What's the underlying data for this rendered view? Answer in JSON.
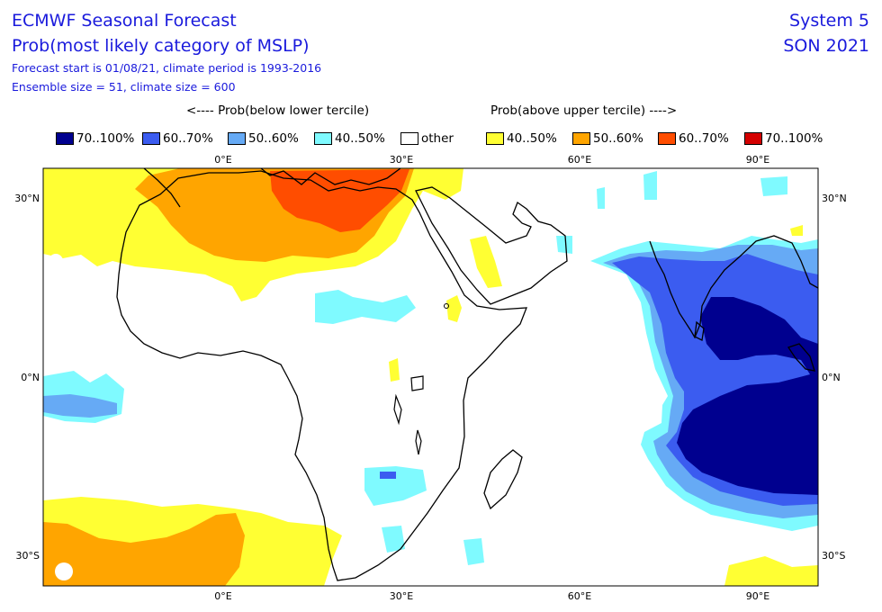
{
  "header": {
    "title": "ECMWF Seasonal Forecast",
    "subtitle": "Prob(most likely category of MSLP)",
    "forecast_info": "Forecast start is 01/08/21, climate period is 1993-2016",
    "ensemble_info": "Ensemble size = 51, climate size = 600",
    "system": "System 5",
    "season": "SON 2021"
  },
  "legend": {
    "below_header": "<---- Prob(below lower tercile)",
    "above_header": "Prob(above upper tercile) ---->",
    "items": [
      {
        "label": "70..100%",
        "color": "#00008f"
      },
      {
        "label": "60..70%",
        "color": "#3b5cf0"
      },
      {
        "label": "50..60%",
        "color": "#66aaf5"
      },
      {
        "label": "40..50%",
        "color": "#7ffaff"
      },
      {
        "label": "other",
        "color": "#ffffff"
      },
      {
        "label": "40..50%",
        "color": "#ffff33"
      },
      {
        "label": "50..60%",
        "color": "#ffa500"
      },
      {
        "label": "60..70%",
        "color": "#ff4d00"
      },
      {
        "label": "70..100%",
        "color": "#d40000"
      }
    ]
  },
  "map": {
    "lon_ticks": [
      "0°E",
      "30°E",
      "60°E",
      "90°E"
    ],
    "lat_ticks": [
      "30°N",
      "0°N",
      "30°S"
    ]
  }
}
